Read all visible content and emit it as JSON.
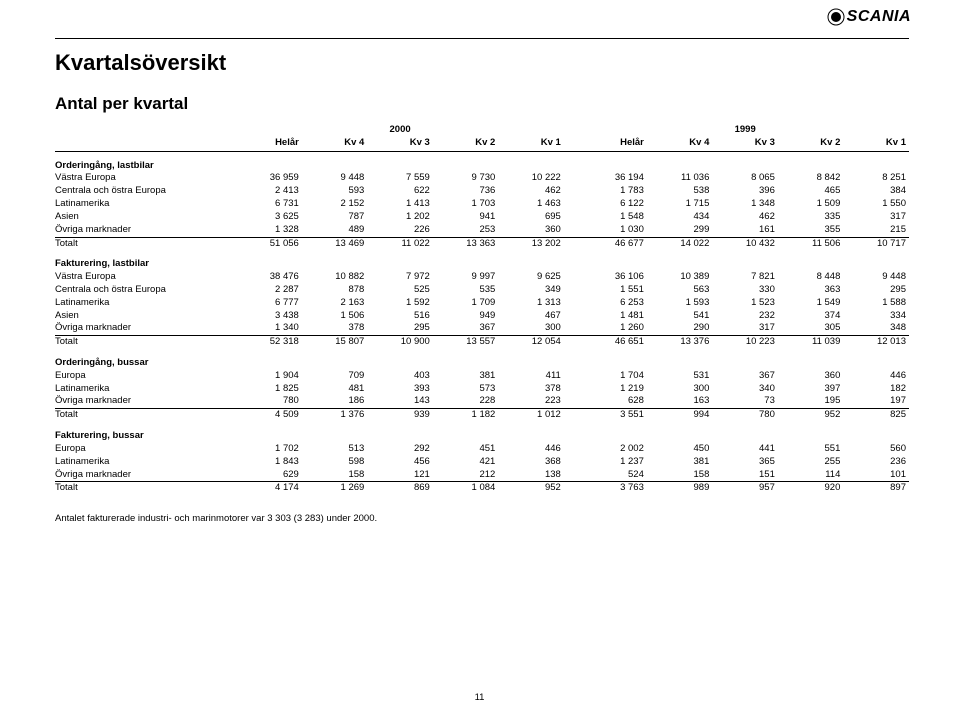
{
  "logo_text": "SCANIA",
  "title": "Kvartalsöversikt",
  "subtitle": "Antal per kvartal",
  "year_left": "2000",
  "year_right": "1999",
  "columns_left": [
    "Helår",
    "Kv 4",
    "Kv 3",
    "Kv 2",
    "Kv 1"
  ],
  "columns_right": [
    "Helår",
    "Kv 4",
    "Kv 3",
    "Kv 2",
    "Kv 1"
  ],
  "sections": [
    {
      "title": "Orderingång, lastbilar",
      "rows": [
        {
          "label": "Västra Europa",
          "l": [
            "36 959",
            "9 448",
            "7 559",
            "9 730",
            "10 222"
          ],
          "r": [
            "36 194",
            "11 036",
            "8 065",
            "8 842",
            "8 251"
          ]
        },
        {
          "label": "Centrala och östra Europa",
          "l": [
            "2 413",
            "593",
            "622",
            "736",
            "462"
          ],
          "r": [
            "1 783",
            "538",
            "396",
            "465",
            "384"
          ]
        },
        {
          "label": "Latinamerika",
          "l": [
            "6 731",
            "2 152",
            "1 413",
            "1 703",
            "1 463"
          ],
          "r": [
            "6 122",
            "1 715",
            "1 348",
            "1 509",
            "1 550"
          ]
        },
        {
          "label": "Asien",
          "l": [
            "3 625",
            "787",
            "1 202",
            "941",
            "695"
          ],
          "r": [
            "1 548",
            "434",
            "462",
            "335",
            "317"
          ]
        },
        {
          "label": "Övriga marknader",
          "l": [
            "1 328",
            "489",
            "226",
            "253",
            "360"
          ],
          "r": [
            "1 030",
            "299",
            "161",
            "355",
            "215"
          ],
          "underline": true
        },
        {
          "label": "Totalt",
          "l": [
            "51 056",
            "13 469",
            "11 022",
            "13 363",
            "13 202"
          ],
          "r": [
            "46 677",
            "14 022",
            "10 432",
            "11 506",
            "10 717"
          ]
        }
      ]
    },
    {
      "title": "Fakturering, lastbilar",
      "rows": [
        {
          "label": "Västra Europa",
          "l": [
            "38 476",
            "10 882",
            "7 972",
            "9 997",
            "9 625"
          ],
          "r": [
            "36 106",
            "10 389",
            "7 821",
            "8 448",
            "9 448"
          ]
        },
        {
          "label": "Centrala och östra Europa",
          "l": [
            "2 287",
            "878",
            "525",
            "535",
            "349"
          ],
          "r": [
            "1 551",
            "563",
            "330",
            "363",
            "295"
          ]
        },
        {
          "label": "Latinamerika",
          "l": [
            "6 777",
            "2 163",
            "1 592",
            "1 709",
            "1 313"
          ],
          "r": [
            "6 253",
            "1 593",
            "1 523",
            "1 549",
            "1 588"
          ]
        },
        {
          "label": "Asien",
          "l": [
            "3 438",
            "1 506",
            "516",
            "949",
            "467"
          ],
          "r": [
            "1 481",
            "541",
            "232",
            "374",
            "334"
          ]
        },
        {
          "label": "Övriga marknader",
          "l": [
            "1 340",
            "378",
            "295",
            "367",
            "300"
          ],
          "r": [
            "1 260",
            "290",
            "317",
            "305",
            "348"
          ],
          "underline": true
        },
        {
          "label": "Totalt",
          "l": [
            "52 318",
            "15 807",
            "10 900",
            "13 557",
            "12 054"
          ],
          "r": [
            "46 651",
            "13 376",
            "10 223",
            "11 039",
            "12 013"
          ]
        }
      ]
    },
    {
      "title": "Orderingång, bussar",
      "rows": [
        {
          "label": "Europa",
          "l": [
            "1 904",
            "709",
            "403",
            "381",
            "411"
          ],
          "r": [
            "1 704",
            "531",
            "367",
            "360",
            "446"
          ]
        },
        {
          "label": "Latinamerika",
          "l": [
            "1 825",
            "481",
            "393",
            "573",
            "378"
          ],
          "r": [
            "1 219",
            "300",
            "340",
            "397",
            "182"
          ]
        },
        {
          "label": "Övriga marknader",
          "l": [
            "780",
            "186",
            "143",
            "228",
            "223"
          ],
          "r": [
            "628",
            "163",
            "73",
            "195",
            "197"
          ],
          "underline": true
        },
        {
          "label": "Totalt",
          "l": [
            "4 509",
            "1 376",
            "939",
            "1 182",
            "1 012"
          ],
          "r": [
            "3 551",
            "994",
            "780",
            "952",
            "825"
          ]
        }
      ]
    },
    {
      "title": "Fakturering, bussar",
      "rows": [
        {
          "label": "Europa",
          "l": [
            "1 702",
            "513",
            "292",
            "451",
            "446"
          ],
          "r": [
            "2 002",
            "450",
            "441",
            "551",
            "560"
          ]
        },
        {
          "label": "Latinamerika",
          "l": [
            "1 843",
            "598",
            "456",
            "421",
            "368"
          ],
          "r": [
            "1 237",
            "381",
            "365",
            "255",
            "236"
          ]
        },
        {
          "label": "Övriga marknader",
          "l": [
            "629",
            "158",
            "121",
            "212",
            "138"
          ],
          "r": [
            "524",
            "158",
            "151",
            "114",
            "101"
          ],
          "underline": true
        },
        {
          "label": "Totalt",
          "l": [
            "4 174",
            "1 269",
            "869",
            "1 084",
            "952"
          ],
          "r": [
            "3 763",
            "989",
            "957",
            "920",
            "897"
          ]
        }
      ]
    }
  ],
  "footnote": "Antalet fakturerade industri- och marinmotorer var 3 303 (3 283) under 2000.",
  "page_number": "11"
}
